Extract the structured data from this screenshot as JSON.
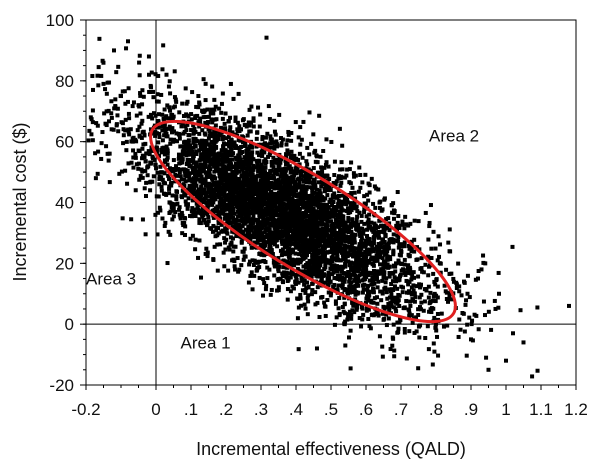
{
  "chart_data": {
    "type": "scatter",
    "xlabel": "Incremental effectiveness (QALD)",
    "ylabel": "Incremental cost ($)",
    "xlim": [
      -0.2,
      1.2
    ],
    "ylim": [
      -20,
      100
    ],
    "x_ticks": [
      -0.2,
      0,
      0.1,
      0.2,
      0.3,
      0.4,
      0.5,
      0.6,
      0.7,
      0.8,
      0.9,
      1.0,
      1.1,
      1.2
    ],
    "x_tick_labels": [
      "-0.2",
      "0",
      ".1",
      ".2",
      ".3",
      ".4",
      ".5",
      ".6",
      ".7",
      ".8",
      ".9",
      "1",
      "1.1",
      "1.2"
    ],
    "y_ticks": [
      -20,
      0,
      20,
      40,
      60,
      80,
      100
    ],
    "y_tick_labels": [
      "-20",
      "0",
      "20",
      "40",
      "60",
      "80",
      "100"
    ],
    "reference_lines": {
      "x": 0,
      "y": 0
    },
    "point_color": "#000000",
    "ellipse_color": "#e02020",
    "confidence_ellipse": {
      "center": [
        0.36,
        37
      ],
      "endpoint_a": [
        -0.01,
        64
      ],
      "endpoint_b": [
        0.85,
        3.5
      ]
    },
    "cloud_description": {
      "center": [
        0.36,
        37
      ],
      "points_approx": 5000
    },
    "outliers": [
      [
        -0.08,
        93
      ],
      [
        -0.12,
        90
      ],
      [
        -0.18,
        77
      ],
      [
        -0.15,
        79
      ],
      [
        -0.1,
        75
      ],
      [
        -0.02,
        82
      ],
      [
        0.03,
        82
      ],
      [
        -0.05,
        72
      ],
      [
        1.18,
        6
      ],
      [
        1.05,
        -6
      ],
      [
        1.0,
        -12
      ],
      [
        0.95,
        -15
      ],
      [
        0.98,
        10
      ],
      [
        0.93,
        18
      ],
      [
        0.92,
        15
      ],
      [
        0.88,
        14
      ],
      [
        0.9,
        -5
      ],
      [
        1.02,
        -3
      ],
      [
        0.97,
        5
      ],
      [
        0.94,
        3
      ],
      [
        0.89,
        10
      ]
    ],
    "annotations": [
      {
        "text": "Area 2",
        "x": 0.78,
        "y": 60
      },
      {
        "text": "Area 3",
        "x": -0.2,
        "y": 13
      },
      {
        "text": "Area 1",
        "x": 0.07,
        "y": -8
      }
    ]
  }
}
